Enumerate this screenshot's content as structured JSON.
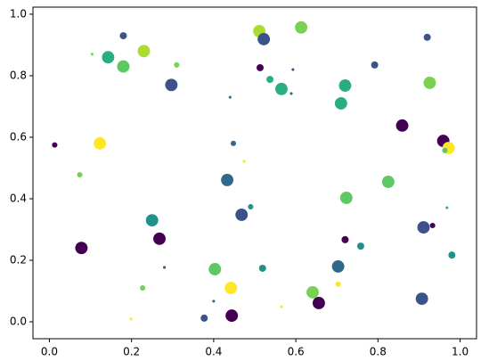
{
  "chart_data": {
    "type": "scatter",
    "x": [
      0.104,
      0.143,
      0.18,
      0.18,
      0.23,
      0.31,
      0.297,
      0.013,
      0.123,
      0.074,
      0.078,
      0.25,
      0.268,
      0.28,
      0.227,
      0.199,
      0.377,
      0.403,
      0.4,
      0.444,
      0.442,
      0.433,
      0.448,
      0.44,
      0.474,
      0.468,
      0.49,
      0.511,
      0.522,
      0.513,
      0.537,
      0.565,
      0.589,
      0.593,
      0.613,
      0.519,
      0.565,
      0.641,
      0.656,
      0.703,
      0.703,
      0.72,
      0.758,
      0.723,
      0.71,
      0.72,
      0.792,
      0.859,
      0.825,
      0.911,
      0.933,
      0.907,
      0.98,
      0.968,
      0.92,
      0.926,
      0.959,
      0.972,
      0.963
    ],
    "y": [
      0.87,
      0.86,
      0.93,
      0.83,
      0.88,
      0.835,
      0.77,
      0.575,
      0.58,
      0.478,
      0.24,
      0.33,
      0.27,
      0.177,
      0.11,
      0.009,
      0.012,
      0.171,
      0.067,
      0.02,
      0.11,
      0.461,
      0.58,
      0.73,
      0.522,
      0.348,
      0.374,
      0.945,
      0.919,
      0.826,
      0.788,
      0.757,
      0.742,
      0.82,
      0.957,
      0.174,
      0.049,
      0.096,
      0.061,
      0.122,
      0.18,
      0.267,
      0.246,
      0.403,
      0.71,
      0.768,
      0.835,
      0.638,
      0.455,
      0.307,
      0.313,
      0.075,
      0.217,
      0.371,
      0.925,
      0.777,
      0.588,
      0.565,
      0.557
    ],
    "sizes": [
      5,
      100,
      33,
      100,
      100,
      19,
      100,
      19,
      100,
      19,
      100,
      100,
      100,
      5,
      19,
      5,
      33,
      100,
      5,
      100,
      100,
      100,
      19,
      5,
      5,
      100,
      19,
      100,
      100,
      33,
      33,
      100,
      5,
      5,
      100,
      33,
      5,
      100,
      100,
      19,
      100,
      33,
      33,
      100,
      100,
      100,
      33,
      100,
      100,
      100,
      19,
      100,
      33,
      5,
      33,
      100,
      100,
      100,
      19
    ],
    "colors": [
      "#7ad151",
      "#28ae80",
      "#3b528b",
      "#5ec962",
      "#addc30",
      "#7ad151",
      "#3b528b",
      "#440154",
      "#fde725",
      "#7ad151",
      "#440154",
      "#21918c",
      "#440154",
      "#3b528b",
      "#7ad151",
      "#fde725",
      "#3b528b",
      "#5ec962",
      "#31688e",
      "#440154",
      "#fde725",
      "#31688e",
      "#31688e",
      "#31688e",
      "#fde725",
      "#3b528b",
      "#21918c",
      "#addc30",
      "#3b528b",
      "#440154",
      "#28ae80",
      "#28ae80",
      "#31688e",
      "#3b528b",
      "#7ad151",
      "#21918c",
      "#fde725",
      "#7ad151",
      "#440154",
      "#fde725",
      "#31688e",
      "#440154",
      "#21918c",
      "#5ec962",
      "#28ae80",
      "#28ae80",
      "#3b528b",
      "#440154",
      "#5ec962",
      "#3b528b",
      "#440154",
      "#3b528b",
      "#21918c",
      "#28ae80",
      "#3b528b",
      "#7ad151",
      "#440154",
      "#fde725",
      "#5ec962"
    ],
    "xlim": [
      -0.04,
      1.04
    ],
    "ylim": [
      -0.055,
      1.023
    ],
    "xticks": [
      {
        "value": 0,
        "label": "0.0"
      },
      0.2,
      0.4,
      0.6,
      0.8,
      {
        "value": 1,
        "label": "1.0"
      }
    ],
    "yticks": [
      {
        "value": 0,
        "label": "0.0"
      },
      0.2,
      0.4,
      0.6,
      0.8,
      {
        "value": 1,
        "label": "1.0"
      }
    ]
  }
}
